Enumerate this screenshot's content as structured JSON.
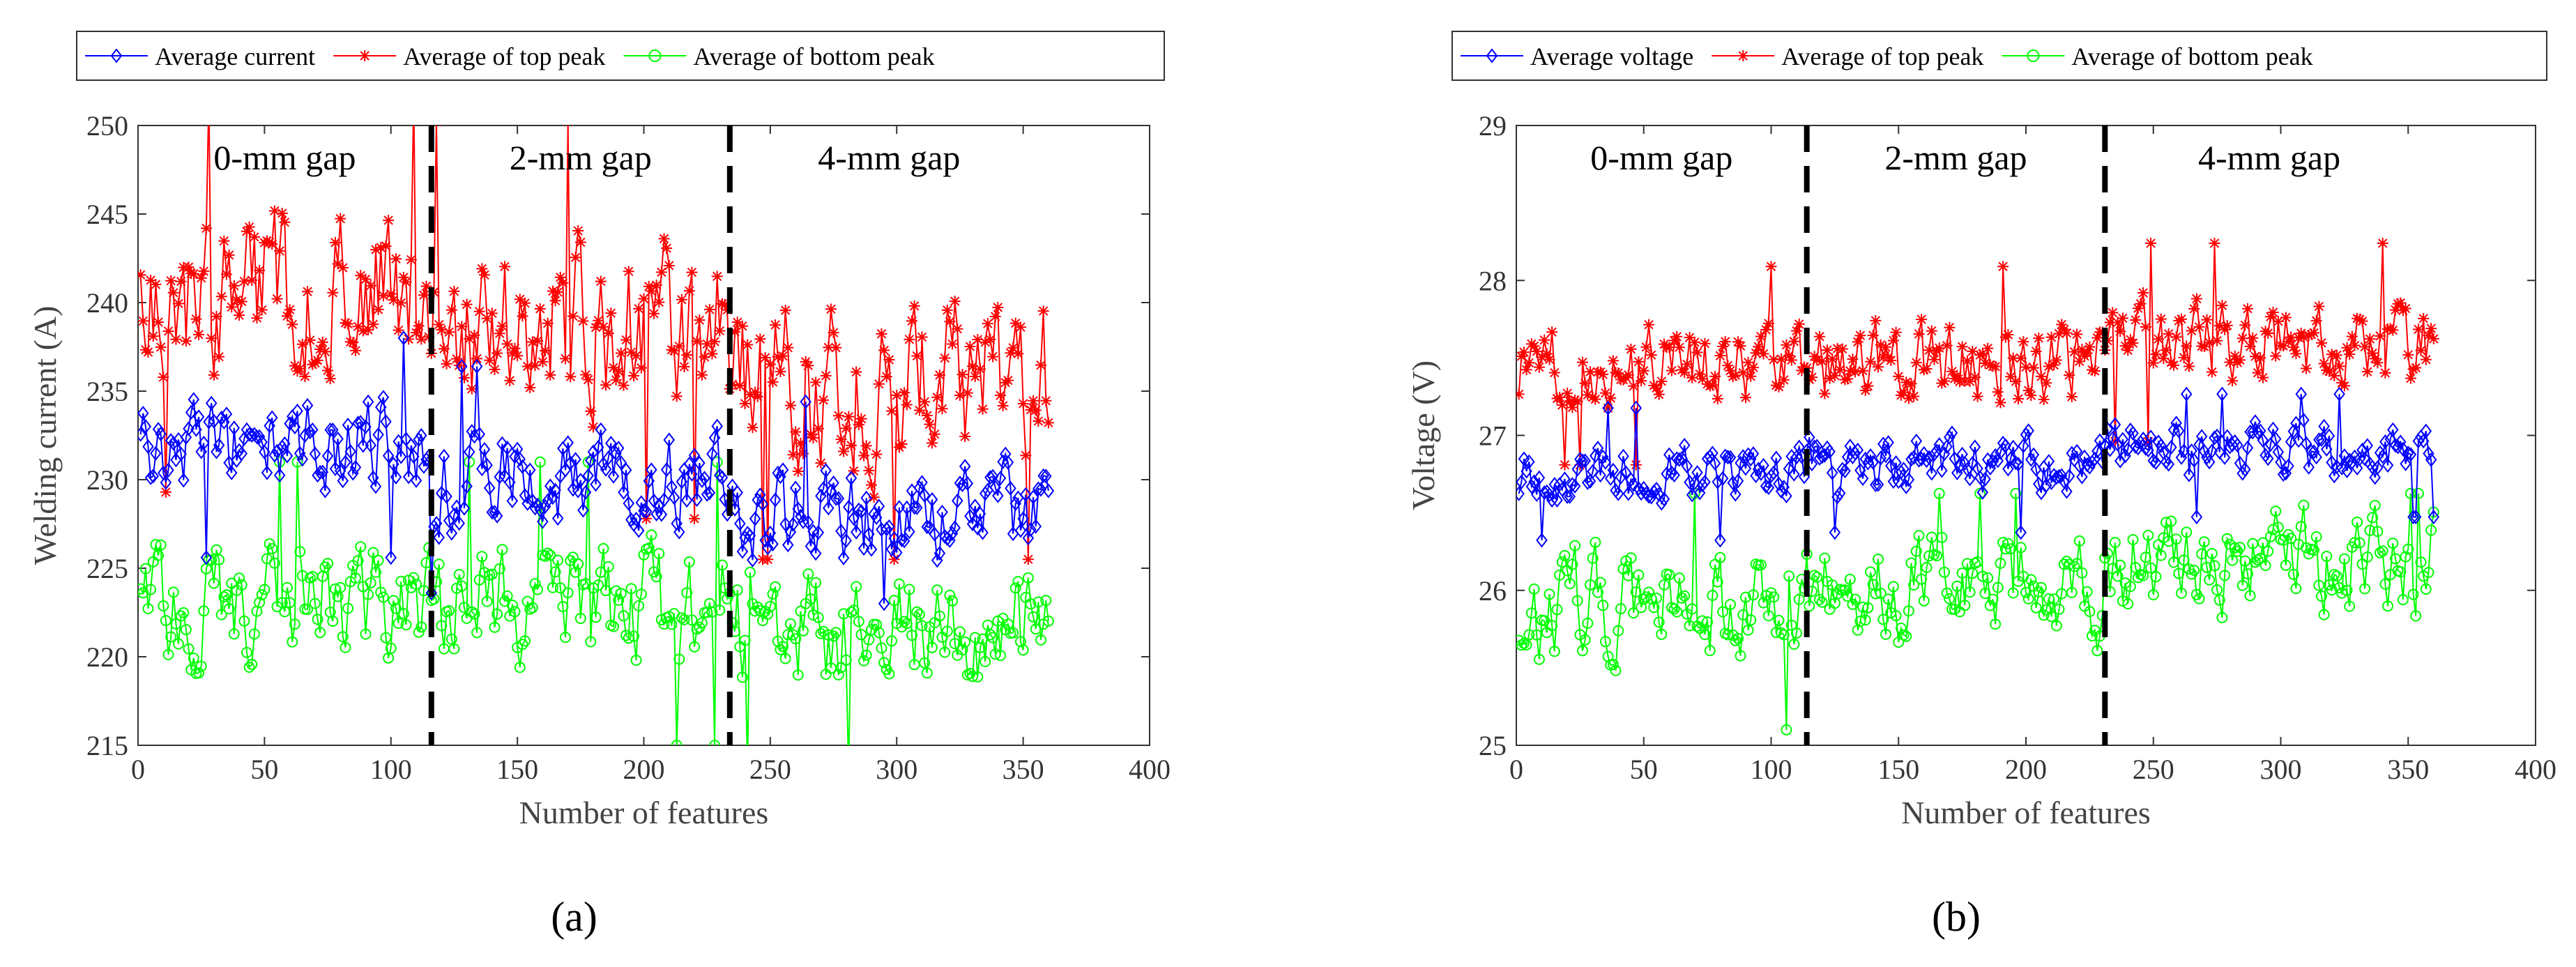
{
  "chart_data": [
    {
      "type": "line",
      "panel_label": "(a)",
      "xlabel": "Number of features",
      "ylabel": "Welding current (A)",
      "xlim": [
        0,
        400
      ],
      "ylim": [
        215,
        250
      ],
      "xticks": [
        0,
        50,
        100,
        150,
        200,
        250,
        300,
        350,
        400
      ],
      "yticks": [
        215,
        220,
        225,
        230,
        235,
        240,
        245,
        250
      ],
      "x_values": "feature index 1 to 360",
      "gap_boundaries": [
        116,
        234
      ],
      "region_labels": [
        "0-mm gap",
        "2-mm gap",
        "4-mm gap"
      ],
      "legend_position": "top",
      "series": [
        {
          "name": "Average current",
          "color": "#0000ff",
          "marker": "diamond",
          "segment_means": [
            232,
            230,
            228
          ],
          "approx_range": [
            225,
            237
          ]
        },
        {
          "name": "Average of top peak",
          "color": "#ff0000",
          "marker": "asterisk",
          "segment_means": [
            240.5,
            239,
            235.5
          ],
          "approx_range": [
            229,
            250
          ]
        },
        {
          "name": "Average of bottom peak",
          "color": "#00ff00",
          "marker": "circle",
          "segment_means": [
            223,
            223,
            221.5
          ],
          "approx_range": [
            215,
            230
          ]
        }
      ]
    },
    {
      "type": "line",
      "panel_label": "(b)",
      "xlabel": "Number of features",
      "ylabel": "Voltage (V)",
      "xlim": [
        0,
        400
      ],
      "ylim": [
        25,
        29
      ],
      "xticks": [
        0,
        50,
        100,
        150,
        200,
        250,
        300,
        350,
        400
      ],
      "yticks": [
        25,
        26,
        27,
        28,
        29
      ],
      "x_values": "feature index 1 to 360",
      "gap_boundaries": [
        114,
        231
      ],
      "region_labels": [
        "0-mm gap",
        "2-mm gap",
        "4-mm gap"
      ],
      "legend_position": "top",
      "series": [
        {
          "name": "Average voltage",
          "color": "#0000ff",
          "marker": "diamond",
          "segment_means": [
            26.75,
            26.8,
            26.9
          ],
          "approx_range": [
            26.4,
            27.2
          ]
        },
        {
          "name": "Average of top peak",
          "color": "#ff0000",
          "marker": "asterisk",
          "segment_means": [
            27.45,
            27.45,
            27.6
          ],
          "approx_range": [
            27.0,
            28.2
          ]
        },
        {
          "name": "Average of bottom peak",
          "color": "#00ff00",
          "marker": "circle",
          "segment_means": [
            25.9,
            26.0,
            26.2
          ],
          "approx_range": [
            25.0,
            26.5
          ]
        }
      ]
    }
  ]
}
